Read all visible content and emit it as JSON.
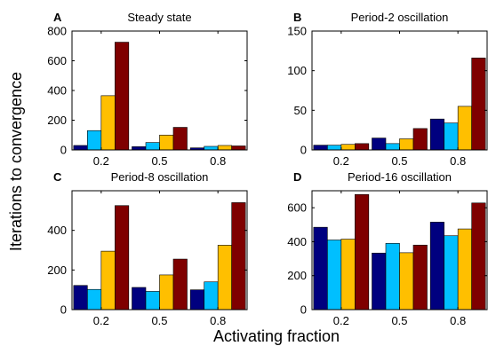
{
  "xlabel": "Activating fraction",
  "ylabel": "Iterations to convergence",
  "series_colors": [
    "#00007f",
    "#00bfff",
    "#ffbf00",
    "#7f0000"
  ],
  "chart_data": [
    {
      "type": "bar",
      "panel_label": "A",
      "title": "Steady state",
      "categories": [
        "0.2",
        "0.5",
        "0.8"
      ],
      "ylim": [
        0,
        800
      ],
      "yticks": [
        0,
        200,
        400,
        600,
        800
      ],
      "series": [
        {
          "values": [
            30,
            22,
            14
          ]
        },
        {
          "values": [
            130,
            50,
            24
          ]
        },
        {
          "values": [
            365,
            100,
            30
          ]
        },
        {
          "values": [
            725,
            152,
            27
          ]
        }
      ],
      "grid": false
    },
    {
      "type": "bar",
      "panel_label": "B",
      "title": "Period-2 oscillation",
      "categories": [
        "0.2",
        "0.5",
        "0.8"
      ],
      "ylim": [
        0,
        150
      ],
      "yticks": [
        0,
        50,
        100,
        150
      ],
      "series": [
        {
          "values": [
            6,
            15,
            39
          ]
        },
        {
          "values": [
            6,
            8,
            34
          ]
        },
        {
          "values": [
            7,
            14,
            55
          ]
        },
        {
          "values": [
            8,
            27,
            116
          ]
        }
      ],
      "grid": false
    },
    {
      "type": "bar",
      "panel_label": "C",
      "title": "Period-8 oscillation",
      "categories": [
        "0.2",
        "0.5",
        "0.8"
      ],
      "ylim": [
        0,
        600
      ],
      "yticks": [
        0,
        200,
        400
      ],
      "series": [
        {
          "values": [
            122,
            112,
            100
          ]
        },
        {
          "values": [
            102,
            92,
            140
          ]
        },
        {
          "values": [
            295,
            175,
            325
          ]
        },
        {
          "values": [
            525,
            255,
            540
          ]
        }
      ],
      "grid": false
    },
    {
      "type": "bar",
      "panel_label": "D",
      "title": "Period-16 oscillation",
      "categories": [
        "0.2",
        "0.5",
        "0.8"
      ],
      "ylim": [
        0,
        700
      ],
      "yticks": [
        0,
        200,
        400,
        600
      ],
      "series": [
        {
          "values": [
            485,
            333,
            515
          ]
        },
        {
          "values": [
            410,
            390,
            435
          ]
        },
        {
          "values": [
            415,
            335,
            475
          ]
        },
        {
          "values": [
            678,
            380,
            628
          ]
        }
      ],
      "grid": false
    }
  ]
}
